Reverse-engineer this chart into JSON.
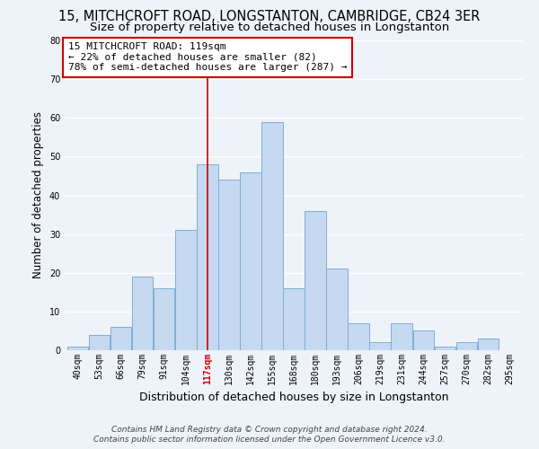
{
  "title": "15, MITCHCROFT ROAD, LONGSTANTON, CAMBRIDGE, CB24 3ER",
  "subtitle": "Size of property relative to detached houses in Longstanton",
  "xlabel": "Distribution of detached houses by size in Longstanton",
  "ylabel": "Number of detached properties",
  "bin_labels": [
    "40sqm",
    "53sqm",
    "66sqm",
    "79sqm",
    "91sqm",
    "104sqm",
    "117sqm",
    "130sqm",
    "142sqm",
    "155sqm",
    "168sqm",
    "180sqm",
    "193sqm",
    "206sqm",
    "219sqm",
    "231sqm",
    "244sqm",
    "257sqm",
    "270sqm",
    "282sqm",
    "295sqm"
  ],
  "bar_heights": [
    1,
    4,
    6,
    19,
    16,
    31,
    48,
    44,
    46,
    59,
    16,
    36,
    21,
    7,
    2,
    7,
    5,
    1,
    2,
    3,
    0
  ],
  "bar_color": "#c5d9f1",
  "bar_edge_color": "#7fafd4",
  "vline_x_index": 6,
  "vline_color": "#cc0000",
  "annotation_line1": "15 MITCHCROFT ROAD: 119sqm",
  "annotation_line2": "← 22% of detached houses are smaller (82)",
  "annotation_line3": "78% of semi-detached houses are larger (287) →",
  "annotation_box_color": "#ffffff",
  "annotation_box_edge_color": "#cc0000",
  "ylim": [
    0,
    80
  ],
  "yticks": [
    0,
    10,
    20,
    30,
    40,
    50,
    60,
    70,
    80
  ],
  "footer_line1": "Contains HM Land Registry data © Crown copyright and database right 2024.",
  "footer_line2": "Contains public sector information licensed under the Open Government Licence v3.0.",
  "background_color": "#eef2f9",
  "grid_color": "#ffffff",
  "title_fontsize": 10.5,
  "subtitle_fontsize": 9.5,
  "ylabel_fontsize": 8.5,
  "xlabel_fontsize": 9,
  "tick_fontsize": 7,
  "annotation_fontsize": 8,
  "footer_fontsize": 6.5
}
